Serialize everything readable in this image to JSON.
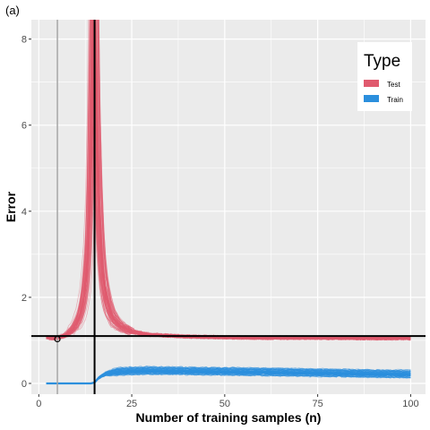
{
  "panel_tag": "(a)",
  "colors": {
    "panel_bg": "#ebebeb",
    "grid": "#ffffff",
    "test": "#e05a6e",
    "train": "#2b8fdd",
    "ref_line": "#000000",
    "gray_line": "#a6a6a6"
  },
  "chart_data": {
    "type": "line",
    "xlabel": "Number of training samples (n)",
    "ylabel": "Error",
    "xlim": [
      -2,
      104
    ],
    "ylim": [
      -0.25,
      8.45
    ],
    "x_ticks": [
      0,
      25,
      50,
      75,
      100
    ],
    "y_ticks": [
      0,
      2,
      4,
      6,
      8
    ],
    "x_tick_labels": [
      "0",
      "25",
      "50",
      "75",
      "100"
    ],
    "y_tick_labels": [
      "0",
      "2",
      "4",
      "6",
      "8"
    ],
    "grid": true,
    "legend": {
      "title": "Type",
      "position": "top-right",
      "entries": [
        {
          "label": "Test",
          "color": "#e05a6e"
        },
        {
          "label": "Train",
          "color": "#2b8fdd"
        }
      ]
    },
    "series": [
      {
        "name": "Test",
        "color": "#e05a6e",
        "x": [
          2,
          3,
          4,
          5,
          6,
          7,
          8,
          9,
          10,
          11,
          12,
          13,
          13.5,
          14,
          14.5,
          15,
          15.5,
          16,
          17,
          18,
          19,
          20,
          22,
          25,
          30,
          40,
          50,
          60,
          75,
          90,
          100
        ],
        "y": [
          1.08,
          1.06,
          1.05,
          1.06,
          1.08,
          1.12,
          1.18,
          1.26,
          1.38,
          1.58,
          1.95,
          2.8,
          3.8,
          5.8,
          9.0,
          9.0,
          6.0,
          4.2,
          2.6,
          2.0,
          1.7,
          1.5,
          1.32,
          1.2,
          1.13,
          1.09,
          1.07,
          1.06,
          1.06,
          1.05,
          1.05
        ],
        "runs": 70
      },
      {
        "name": "Train",
        "color": "#2b8fdd",
        "x": [
          2,
          5,
          10,
          14,
          15,
          16,
          17,
          18,
          20,
          22,
          25,
          30,
          40,
          50,
          60,
          75,
          90,
          100
        ],
        "y": [
          0,
          0,
          0,
          0,
          0.02,
          0.12,
          0.18,
          0.22,
          0.26,
          0.28,
          0.29,
          0.3,
          0.29,
          0.28,
          0.27,
          0.25,
          0.23,
          0.22
        ],
        "runs": 70
      }
    ],
    "reference_lines": {
      "vertical_black": 15,
      "vertical_gray": 5,
      "horizontal_black": 1.1
    },
    "marked_point": {
      "x": 5,
      "y": 1.03
    }
  }
}
